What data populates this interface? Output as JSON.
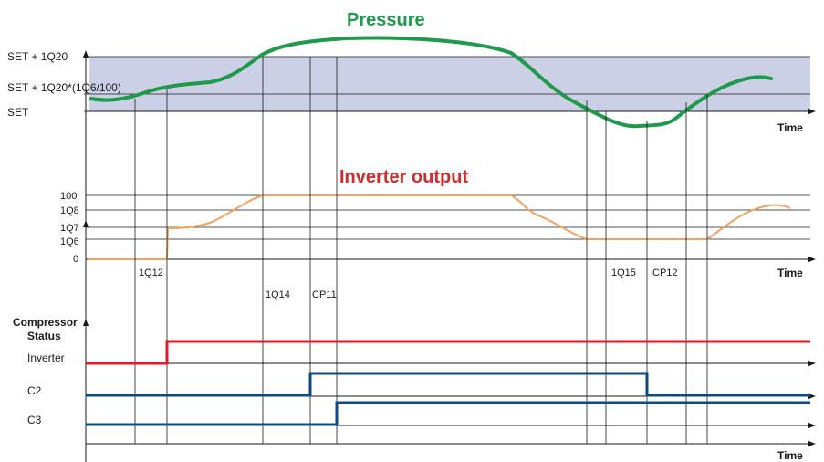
{
  "colors": {
    "band": "#ccd0e6",
    "pressure": "#1f9a4a",
    "inverter_output": "#f0a25e",
    "inverter_title": "#d22b2b",
    "status_inverter": "#d81f26",
    "status_compressor": "#0d4a80"
  },
  "pressure_panel": {
    "title": "Pressure",
    "labels": {
      "upper": "SET + 1Q20",
      "middle": "SET + 1Q20*(1Q6/100)",
      "lower": "SET"
    },
    "axis_label": "Time"
  },
  "inverter_panel": {
    "title": "Inverter output",
    "labels": {
      "l100": "100",
      "lq8": "1Q8",
      "lq7": "1Q7",
      "lq6": "1Q6",
      "l0": "0"
    },
    "axis_label": "Time",
    "events": {
      "q12": "1Q12",
      "q14": "1Q14",
      "cp11": "CP11",
      "q15": "1Q15",
      "cp12": "CP12"
    }
  },
  "status_panel": {
    "heading_line1": "Compressor",
    "heading_line2": "Status",
    "rows": {
      "inverter": "Inverter",
      "c2": "C2",
      "c3": "C3"
    },
    "axis_label": "Time"
  }
}
